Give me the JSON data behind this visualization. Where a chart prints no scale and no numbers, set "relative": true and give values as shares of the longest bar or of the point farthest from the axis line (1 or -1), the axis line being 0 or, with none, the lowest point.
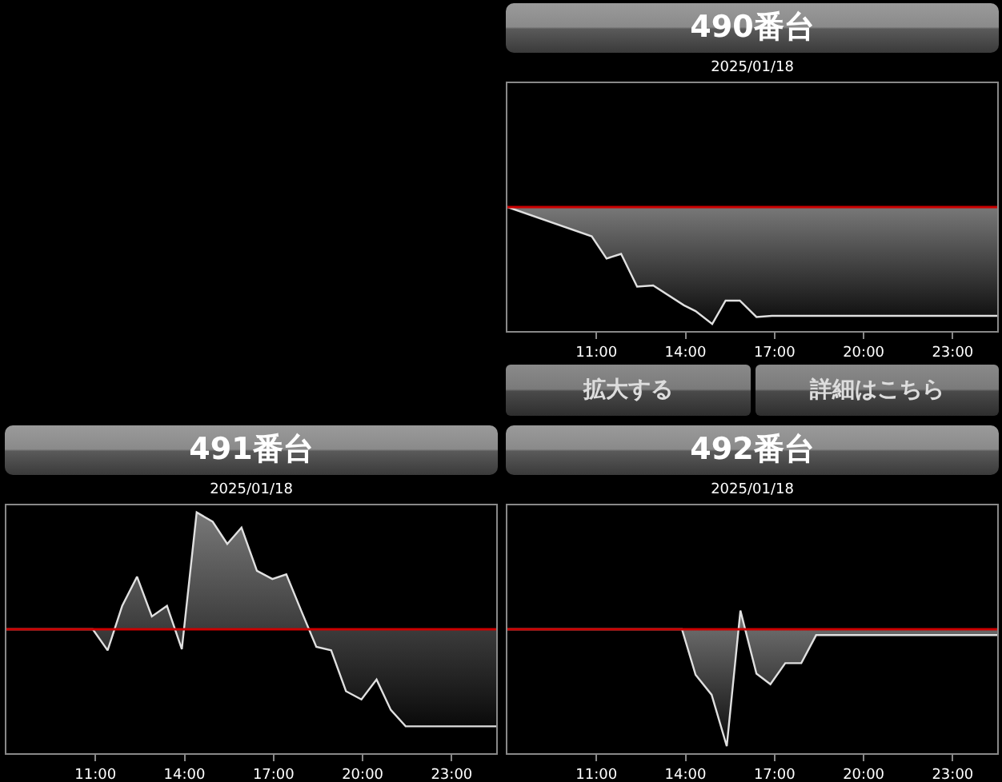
{
  "chart_data": [
    {
      "type": "area",
      "title": "490番台",
      "subtitle": "2025/01/18",
      "relative": true,
      "x": [
        8.0,
        10.84,
        11.34,
        11.83,
        12.37,
        12.91,
        13.95,
        14.34,
        14.9,
        15.35,
        15.83,
        16.39,
        16.91,
        24.5
      ],
      "series": [
        {
          "color": "#e0e0e0",
          "values": [
            0,
            -0.25,
            -0.44,
            -0.4,
            -0.68,
            -0.67,
            -0.84,
            -0.89,
            -1.0,
            -0.8,
            -0.8,
            -0.94,
            -0.93,
            -0.93
          ]
        }
      ],
      "xlim": [
        8,
        24.5
      ],
      "xticks": [
        {
          "value": 11,
          "label": "11:00"
        },
        {
          "value": 14,
          "label": "14:00"
        },
        {
          "value": 17,
          "label": "17:00"
        },
        {
          "value": 20,
          "label": "20:00"
        },
        {
          "value": 23,
          "label": "23:00"
        }
      ],
      "ref_lines": [
        {
          "axis": "y",
          "value": 0,
          "color": "#cc0000"
        }
      ],
      "annotations": [
        "拡大する",
        "詳細はこちら"
      ]
    },
    {
      "type": "area",
      "title": "491番台",
      "subtitle": "2025/01/18",
      "relative": true,
      "x": [
        8.0,
        10.91,
        11.41,
        11.9,
        12.4,
        12.9,
        13.41,
        13.91,
        14.41,
        14.95,
        15.44,
        15.92,
        16.44,
        16.96,
        17.43,
        17.93,
        18.44,
        18.94,
        19.44,
        19.96,
        20.47,
        20.95,
        21.45,
        24.5
      ],
      "series": [
        {
          "color": "#e0e0e0",
          "values": [
            0,
            0,
            -0.18,
            0.2,
            0.45,
            0.11,
            0.2,
            -0.17,
            1.0,
            0.92,
            0.73,
            0.87,
            0.5,
            0.43,
            0.47,
            0.16,
            -0.15,
            -0.18,
            -0.53,
            -0.6,
            -0.43,
            -0.69,
            -0.83,
            -0.83
          ]
        }
      ],
      "xlim": [
        8,
        24.5
      ],
      "xticks": [
        {
          "value": 11,
          "label": "11:00"
        },
        {
          "value": 14,
          "label": "14:00"
        },
        {
          "value": 17,
          "label": "17:00"
        },
        {
          "value": 20,
          "label": "20:00"
        },
        {
          "value": 23,
          "label": "23:00"
        }
      ],
      "ref_lines": [
        {
          "axis": "y",
          "value": 0,
          "color": "#cc0000"
        }
      ]
    },
    {
      "type": "area",
      "title": "492番台",
      "subtitle": "2025/01/18",
      "relative": true,
      "x": [
        8.0,
        13.88,
        14.34,
        14.88,
        15.39,
        15.85,
        16.39,
        16.86,
        17.36,
        17.9,
        18.4,
        24.5
      ],
      "series": [
        {
          "color": "#e0e0e0",
          "values": [
            0,
            0,
            -0.39,
            -0.56,
            -1.0,
            0.16,
            -0.38,
            -0.47,
            -0.29,
            -0.29,
            -0.05,
            -0.05
          ]
        }
      ],
      "xlim": [
        8,
        24.5
      ],
      "xticks": [
        {
          "value": 11,
          "label": "11:00"
        },
        {
          "value": 14,
          "label": "14:00"
        },
        {
          "value": 17,
          "label": "17:00"
        },
        {
          "value": 20,
          "label": "20:00"
        },
        {
          "value": 23,
          "label": "23:00"
        }
      ],
      "ref_lines": [
        {
          "axis": "y",
          "value": 0,
          "color": "#cc0000"
        }
      ]
    }
  ]
}
